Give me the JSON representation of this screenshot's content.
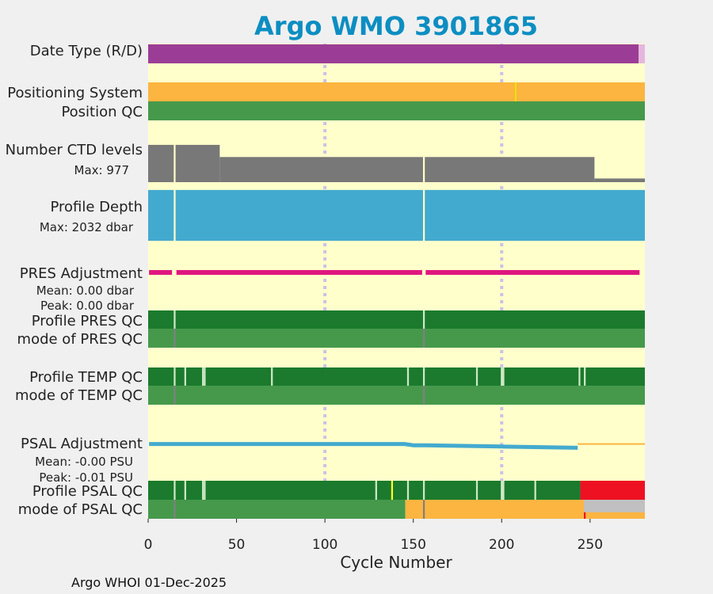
{
  "chart_data": {
    "type": "heatmap",
    "title": "Argo WMO 3901865",
    "xlabel": "Cycle Number",
    "xlim": [
      0,
      281
    ],
    "xticks": [
      0,
      50,
      100,
      150,
      200,
      250
    ],
    "footer": "Argo WHOI 01-Dec-2025",
    "rows": {
      "date_type": {
        "label": "Date Type (R/D)"
      },
      "positioning": {
        "label": "Positioning System"
      },
      "position_qc": {
        "label": "Position QC"
      },
      "ctd_levels": {
        "label": "Number CTD levels",
        "max_label": "Max: 977"
      },
      "profile_depth": {
        "label": "Profile Depth",
        "max_label": "Max: 2032 dbar"
      },
      "pres_adj": {
        "label": "PRES Adjustment",
        "mean_label": "Mean: 0.00 dbar",
        "peak_label": "Peak: 0.00 dbar"
      },
      "pres_qc": {
        "label": "Profile PRES QC"
      },
      "pres_mode": {
        "label": "mode of PRES QC"
      },
      "temp_qc": {
        "label": "Profile TEMP QC"
      },
      "temp_mode": {
        "label": "mode of TEMP QC"
      },
      "psal_adj": {
        "label": "PSAL Adjustment",
        "mean_label": "Mean: -0.00 PSU",
        "peak_label": "Peak: -0.01 PSU"
      },
      "psal_qc": {
        "label": "Profile PSAL QC"
      },
      "psal_mode": {
        "label": "mode of PSAL QC"
      }
    },
    "segments": {
      "date_type": [
        {
          "from": 0,
          "to": 277.5,
          "color": "#9b3d96"
        },
        {
          "from": 277.5,
          "to": 281,
          "color": "#e6b7dd"
        }
      ],
      "positioning": [
        {
          "from": 0,
          "to": 281,
          "color": "#fbb540"
        },
        {
          "from": 207.5,
          "to": 208.3,
          "color": "#e8e800"
        }
      ],
      "position_qc": [
        {
          "from": 0,
          "to": 281,
          "color": "#46994b"
        }
      ],
      "pres_qc": [
        {
          "from": 0,
          "to": 281,
          "color": "#1b7a2d"
        },
        {
          "from": 14.5,
          "to": 15.5,
          "color": "#cfe8c5"
        },
        {
          "from": 155.5,
          "to": 156.5,
          "color": "#cfe8c5"
        }
      ],
      "pres_mode": [
        {
          "from": 0,
          "to": 281,
          "color": "#46994b"
        },
        {
          "from": 14.5,
          "to": 15.5,
          "color": "#808080"
        },
        {
          "from": 155.5,
          "to": 156.5,
          "color": "#808080"
        }
      ],
      "temp_qc": [
        {
          "from": 0,
          "to": 281,
          "color": "#1b7a2d"
        },
        {
          "from": 14.5,
          "to": 15.5,
          "color": "#cfe8c5"
        },
        {
          "from": 20.5,
          "to": 21.5,
          "color": "#cfe8c5"
        },
        {
          "from": 30.5,
          "to": 31.5,
          "color": "#cfe8c5"
        },
        {
          "from": 31.5,
          "to": 32.5,
          "color": "#cfe8c5"
        },
        {
          "from": 69.5,
          "to": 70.5,
          "color": "#cfe8c5"
        },
        {
          "from": 146.5,
          "to": 147.5,
          "color": "#cfe8c5"
        },
        {
          "from": 155.5,
          "to": 156.5,
          "color": "#cfe8c5"
        },
        {
          "from": 185.5,
          "to": 186.5,
          "color": "#cfe8c5"
        },
        {
          "from": 199.5,
          "to": 201.5,
          "color": "#cfe8c5"
        },
        {
          "from": 243.5,
          "to": 244.5,
          "color": "#cfe8c5"
        },
        {
          "from": 246.5,
          "to": 247.5,
          "color": "#cfe8c5"
        }
      ],
      "temp_mode": [
        {
          "from": 0,
          "to": 281,
          "color": "#46994b"
        },
        {
          "from": 14.5,
          "to": 15.5,
          "color": "#808080"
        },
        {
          "from": 155.5,
          "to": 156.5,
          "color": "#808080"
        }
      ],
      "psal_qc": [
        {
          "from": 0,
          "to": 244.5,
          "color": "#1b7a2d"
        },
        {
          "from": 244.5,
          "to": 281,
          "color": "#ee1122"
        },
        {
          "from": 14.5,
          "to": 15.5,
          "color": "#cfe8c5"
        },
        {
          "from": 20.5,
          "to": 21.5,
          "color": "#cfe8c5"
        },
        {
          "from": 30.5,
          "to": 31.5,
          "color": "#cfe8c5"
        },
        {
          "from": 31.5,
          "to": 32.5,
          "color": "#cfe8c5"
        },
        {
          "from": 128.5,
          "to": 129.5,
          "color": "#cfe8c5"
        },
        {
          "from": 137.5,
          "to": 138.5,
          "color": "#ffff22"
        },
        {
          "from": 146.5,
          "to": 147.5,
          "color": "#cfe8c5"
        },
        {
          "from": 155.5,
          "to": 156.5,
          "color": "#cfe8c5"
        },
        {
          "from": 185.5,
          "to": 186.5,
          "color": "#cfe8c5"
        },
        {
          "from": 199.5,
          "to": 201.5,
          "color": "#cfe8c5"
        },
        {
          "from": 218.5,
          "to": 219.5,
          "color": "#cfe8c5"
        }
      ],
      "psal_mode": [
        {
          "from": 0,
          "to": 145.5,
          "color": "#46994b"
        },
        {
          "from": 145.5,
          "to": 281,
          "color": "#fbb540"
        },
        {
          "from": 14.5,
          "to": 15.5,
          "color": "#808080"
        },
        {
          "from": 155.5,
          "to": 156.5,
          "color": "#808080"
        },
        {
          "from": 246.5,
          "to": 281,
          "color": "#c0c0c0",
          "part": "top"
        },
        {
          "from": 246.5,
          "to": 247.5,
          "color": "#ee1122",
          "part": "bottom"
        }
      ]
    },
    "ctd_levels": {
      "max": 977,
      "color": "#787878",
      "steps": [
        {
          "from": 0,
          "to": 14.5,
          "value": 920
        },
        {
          "from": 14.5,
          "to": 15.5,
          "value": 0
        },
        {
          "from": 15.5,
          "to": 40.5,
          "value": 920
        },
        {
          "from": 40.5,
          "to": 155.5,
          "value": 620
        },
        {
          "from": 155.5,
          "to": 156.5,
          "value": 0
        },
        {
          "from": 156.5,
          "to": 252.5,
          "value": 620
        },
        {
          "from": 252.5,
          "to": 281,
          "value": 90
        }
      ]
    },
    "profile_depth": {
      "max": 2032,
      "color": "#43aacf",
      "steps": [
        {
          "from": 0,
          "to": 14.5,
          "value": 1975
        },
        {
          "from": 14.5,
          "to": 15.5,
          "value": 0
        },
        {
          "from": 15.5,
          "to": 155.5,
          "value": 1975
        },
        {
          "from": 155.5,
          "to": 156.5,
          "value": 0
        },
        {
          "from": 156.5,
          "to": 281,
          "value": 1975
        }
      ]
    },
    "pres_adj": {
      "color": "#e0177f",
      "lines": [
        {
          "from": 0.5,
          "to": 13.5,
          "value": 0.0
        },
        {
          "from": 16,
          "to": 155,
          "value": 0.0
        },
        {
          "from": 157,
          "to": 278,
          "value": 0.0
        }
      ]
    },
    "psal_adj": {
      "color": "#43aacf",
      "range": [
        -0.01,
        0.005
      ],
      "thin_color": "#fbb540",
      "points": [
        [
          0.5,
          -0.001
        ],
        [
          13.5,
          -0.001
        ],
        [
          16,
          -0.001
        ],
        [
          145,
          -0.001
        ],
        [
          150,
          -0.002
        ],
        [
          155,
          -0.002
        ],
        [
          157,
          -0.002
        ],
        [
          200,
          -0.003
        ],
        [
          243,
          -0.004
        ]
      ],
      "thin_points": [
        [
          243,
          -0.001
        ],
        [
          281,
          -0.001
        ]
      ]
    }
  }
}
